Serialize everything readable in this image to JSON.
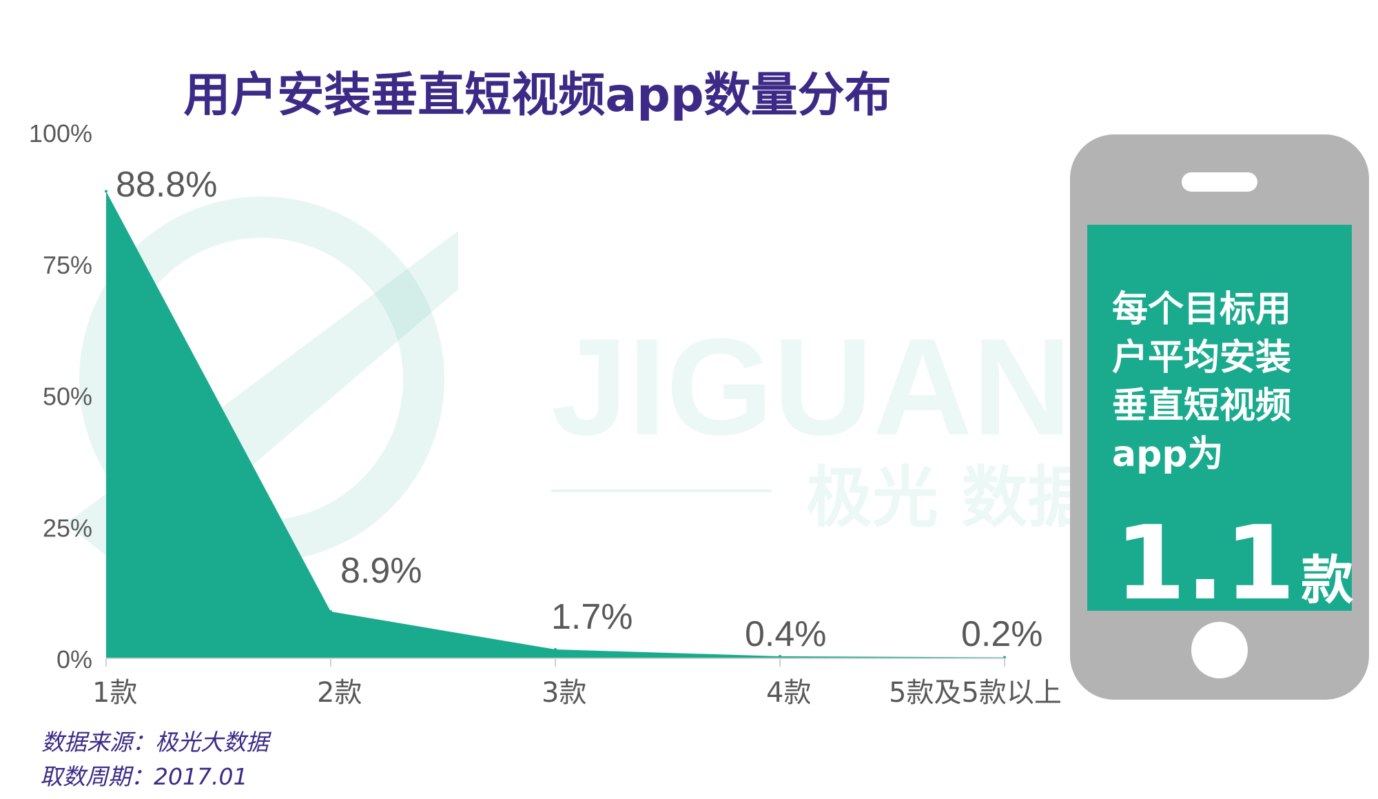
{
  "chart_data": {
    "type": "area",
    "title": "用户安装垂直短视频app数量分布",
    "categories": [
      "1款",
      "2款",
      "3款",
      "4款",
      "5款及5款以上"
    ],
    "values": [
      88.8,
      8.9,
      1.7,
      0.4,
      0.2
    ],
    "data_labels": [
      "88.8%",
      "8.9%",
      "1.7%",
      "0.4%",
      "0.2%"
    ],
    "y_ticks": [
      "0%",
      "25%",
      "50%",
      "75%",
      "100%"
    ],
    "ylim": [
      0,
      100
    ],
    "grid": false,
    "color": "#1aab8e"
  },
  "watermark": {
    "brand": "JIGUANG",
    "tagline": "极光 数据服务"
  },
  "callout": {
    "text": "每个目标用\n户平均安装\n垂直短视频\napp为",
    "value": "1.1",
    "unit": "款"
  },
  "footer": {
    "source": "数据来源：极光大数据",
    "period": "取数周期：2017.01"
  },
  "colors": {
    "accent": "#1aab8e",
    "title": "#3d2a86",
    "phone_body": "#b3b3b3"
  }
}
